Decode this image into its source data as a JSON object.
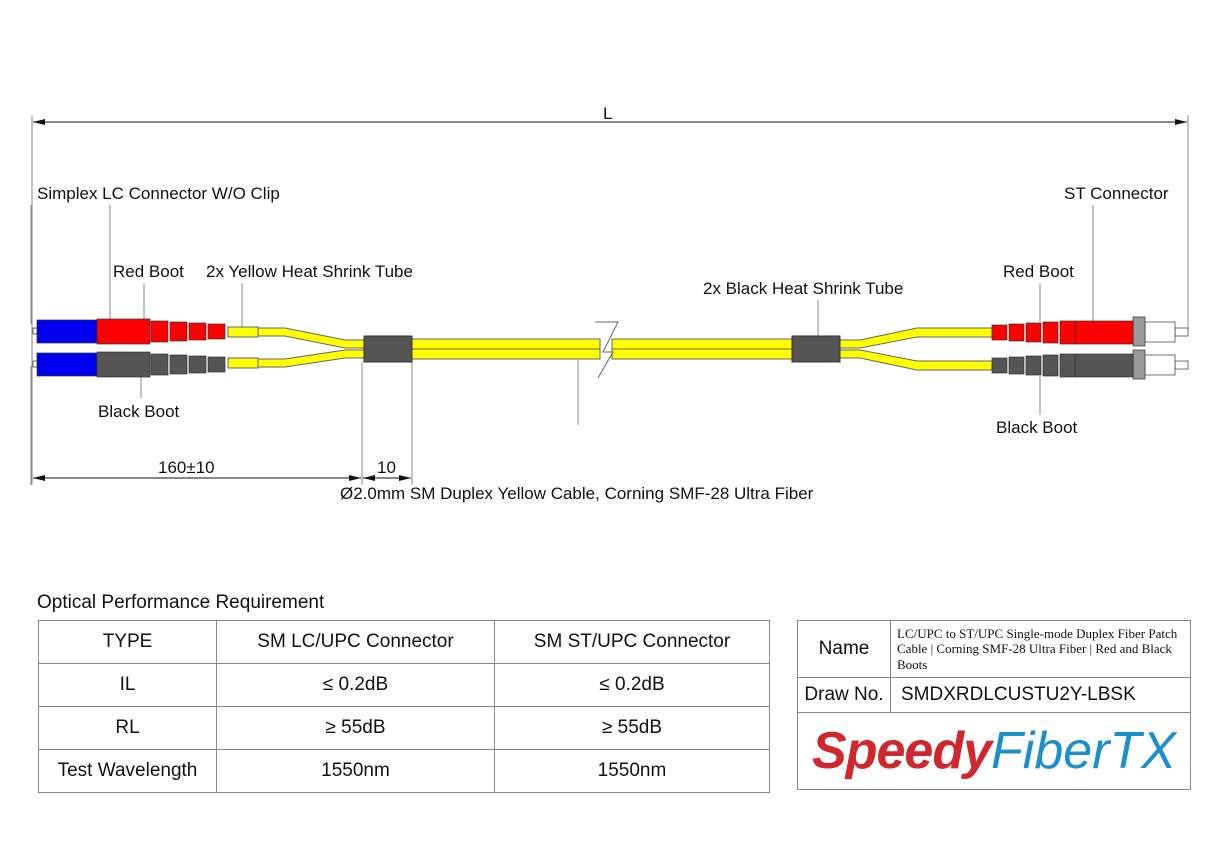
{
  "diagram": {
    "length_label": "L",
    "labels": {
      "lc_connector": "Simplex LC Connector W/O Clip",
      "left_red_boot": "Red Boot",
      "yellow_tube": "2x Yellow Heat Shrink Tube",
      "left_black_boot": "Black Boot",
      "black_tube": "2x Black Heat Shrink Tube",
      "st_connector": "ST Connector",
      "right_red_boot": "Red Boot",
      "right_black_boot": "Black Boot",
      "cable": "Ø2.0mm SM Duplex Yellow Cable, Corning SMF-28 Ultra Fiber"
    },
    "dims": {
      "breakout": "160±10",
      "tube": "10"
    },
    "colors": {
      "cable": "#ffff00",
      "red_boot": "#ff0000",
      "black_boot": "#555555",
      "lc_body": "#0000ee",
      "heat_shrink": "#555555"
    }
  },
  "performance": {
    "title": "Optical Performance Requirement",
    "headers": [
      "TYPE",
      "SM LC/UPC Connector",
      "SM ST/UPC Connector"
    ],
    "rows": [
      [
        "IL",
        "≤ 0.2dB",
        "≤ 0.2dB"
      ],
      [
        "RL",
        "≥ 55dB",
        "≥ 55dB"
      ],
      [
        "Test Wavelength",
        "1550nm",
        "1550nm"
      ]
    ]
  },
  "info": {
    "name_label": "Name",
    "name_value": "LC/UPC to ST/UPC Single-mode Duplex Fiber Patch Cable | Corning SMF-28 Ultra Fiber | Red and Black Boots",
    "draw_label": "Draw No.",
    "draw_value": "SMDXRDLCUSTU2Y-LBSK",
    "logo": {
      "part1": "Speedy",
      "part2": "FiberTX",
      "color1": "#d0262e",
      "color2": "#1a8fd0"
    }
  }
}
